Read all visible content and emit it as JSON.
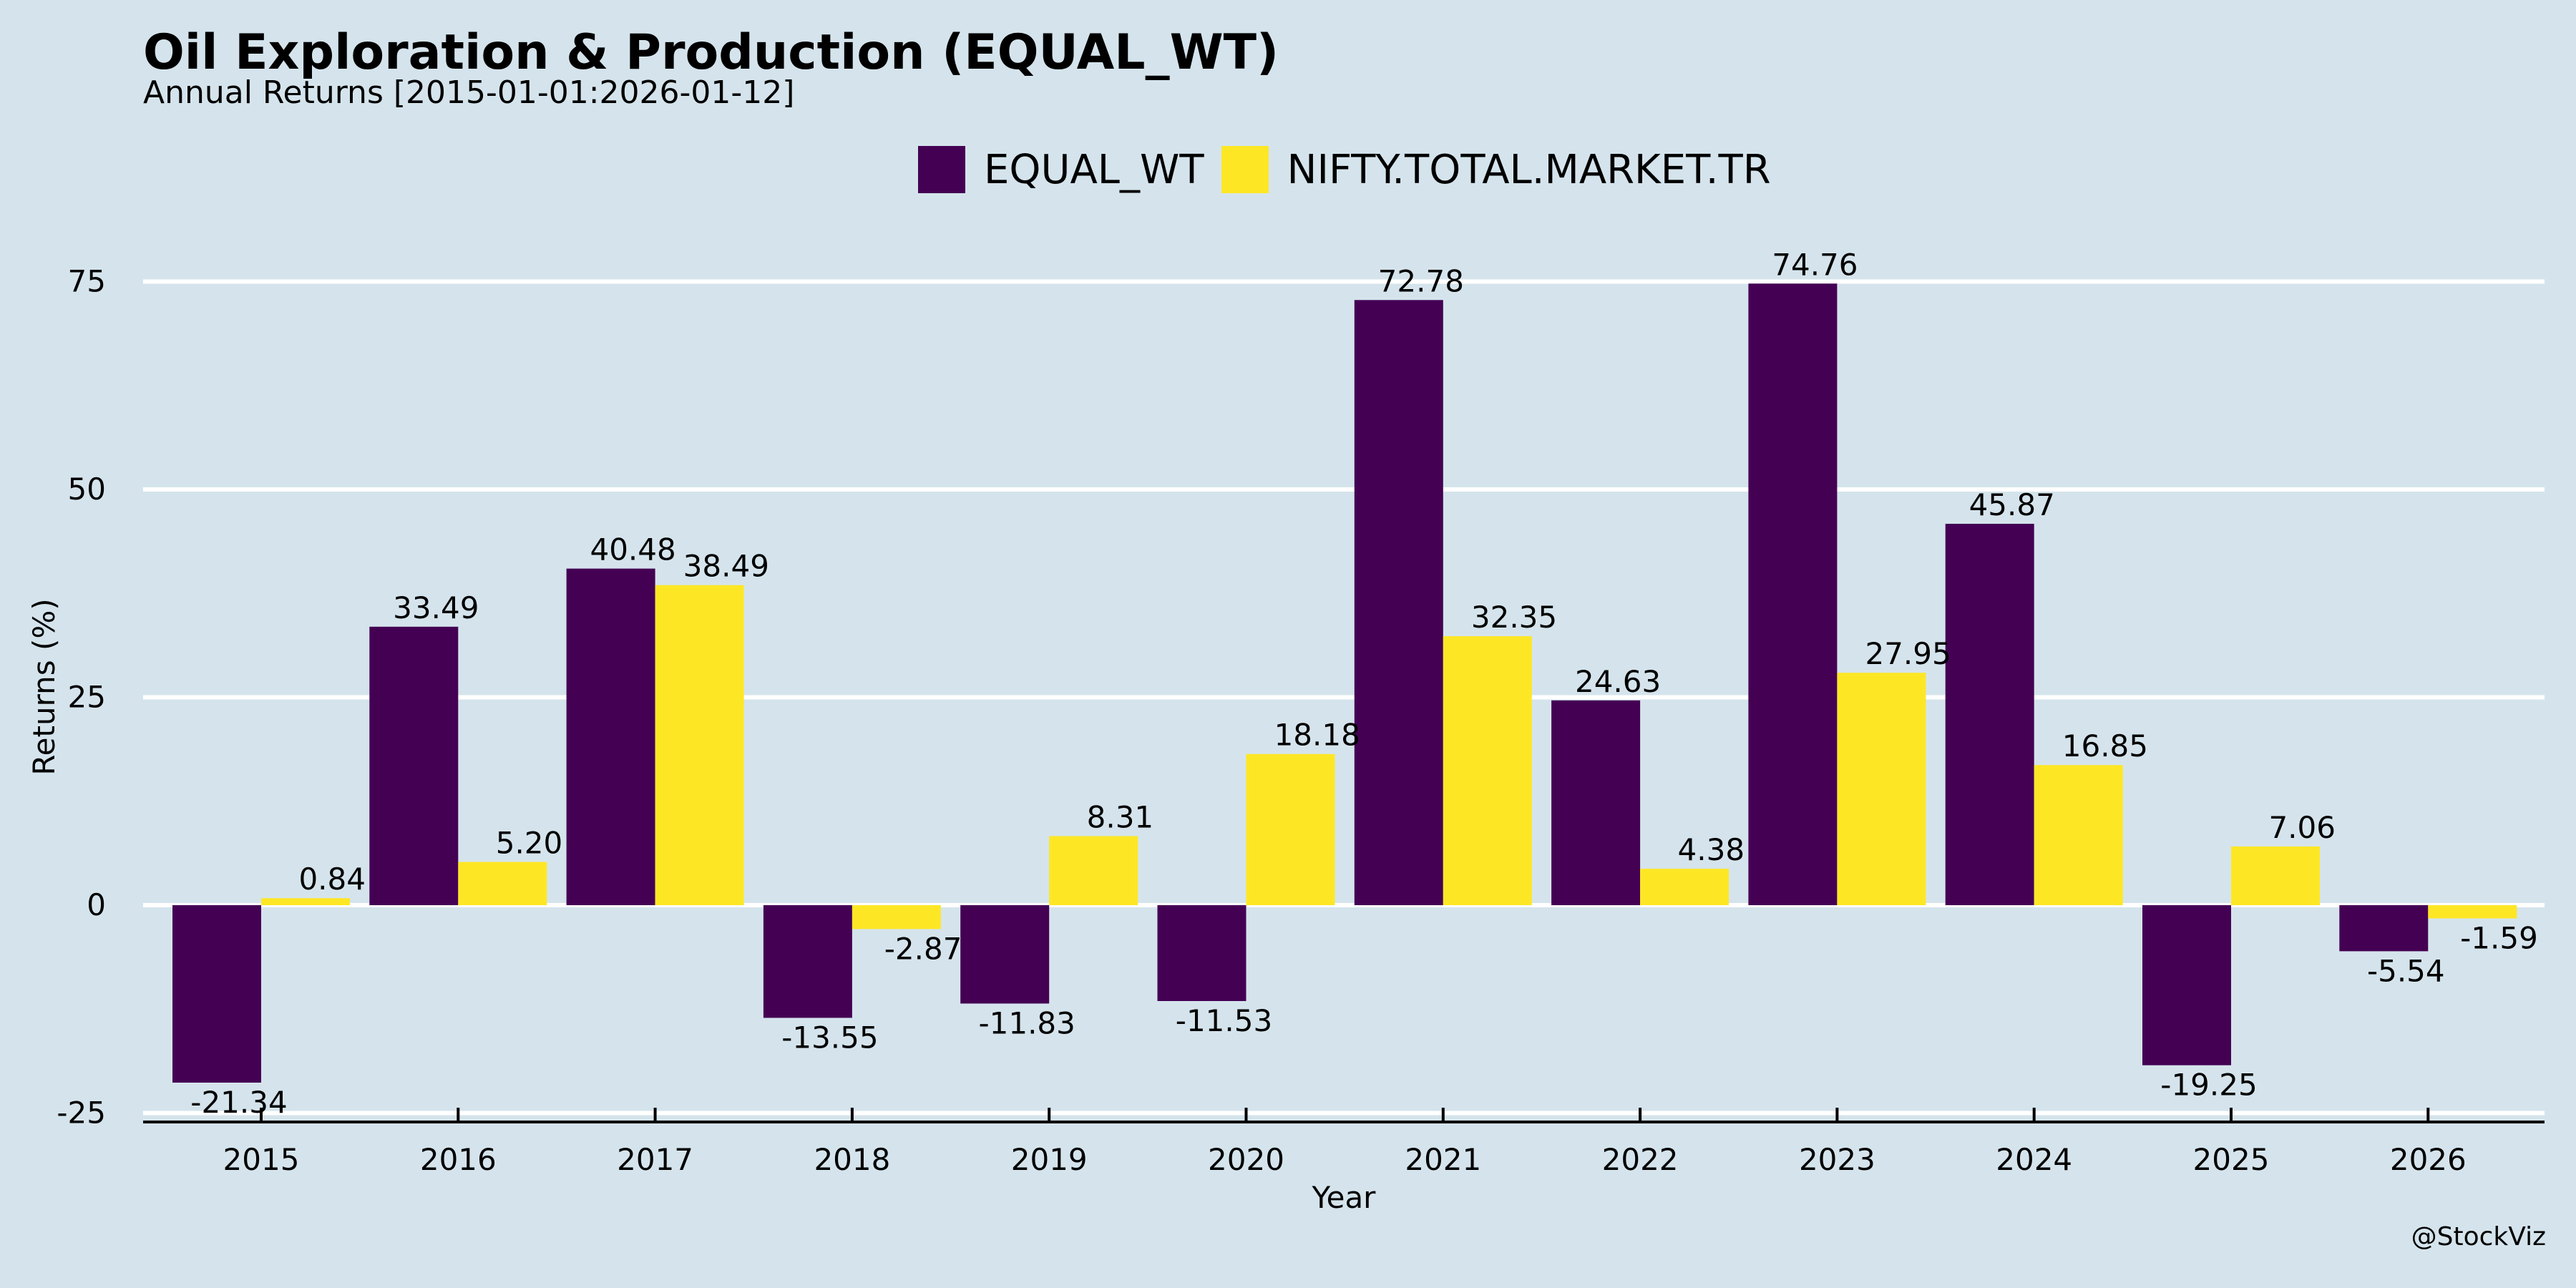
{
  "title": "Oil Exploration & Production (EQUAL_WT)",
  "subtitle": "Annual Returns [2015-01-01:2026-01-12]",
  "watermark": "@StockViz",
  "colors": {
    "background": "#d5e4ec",
    "grid": "#ffffff",
    "axis": "#000000",
    "EQUAL_WT": "#440154",
    "NIFTY.TOTAL.MARKET.TR": "#fde725"
  },
  "chart_data": {
    "type": "bar",
    "title": "Oil Exploration & Production (EQUAL_WT)",
    "subtitle": "Annual Returns [2015-01-01:2026-01-12]",
    "xlabel": "Year",
    "ylabel": "Returns (%)",
    "ylim": [
      -26,
      80
    ],
    "yticks": [
      -25,
      0,
      25,
      50,
      75
    ],
    "grid": "horizontal",
    "legend_position": "top-center",
    "categories": [
      "2015",
      "2016",
      "2017",
      "2018",
      "2019",
      "2020",
      "2021",
      "2022",
      "2023",
      "2024",
      "2025",
      "2026"
    ],
    "series": [
      {
        "name": "EQUAL_WT",
        "color": "#440154",
        "values": [
          -21.34,
          33.49,
          40.48,
          -13.55,
          -11.83,
          -11.53,
          72.78,
          24.63,
          74.76,
          45.87,
          -19.25,
          -5.54
        ],
        "labels": [
          "-21.34",
          "33.49",
          "40.48",
          "-13.55",
          "-11.83",
          "-11.53",
          "72.78",
          "24.63",
          "74.76",
          "45.87",
          "-19.25",
          "-5.54"
        ]
      },
      {
        "name": "NIFTY.TOTAL.MARKET.TR",
        "color": "#fde725",
        "values": [
          0.84,
          5.2,
          38.49,
          -2.87,
          8.31,
          18.18,
          32.35,
          4.38,
          27.95,
          16.85,
          7.06,
          -1.59
        ],
        "labels": [
          "0.84",
          "5.20",
          "38.49",
          "-2.87",
          "8.31",
          "18.18",
          "32.35",
          "4.38",
          "27.95",
          "16.85",
          "7.06",
          "-1.59"
        ]
      }
    ]
  }
}
